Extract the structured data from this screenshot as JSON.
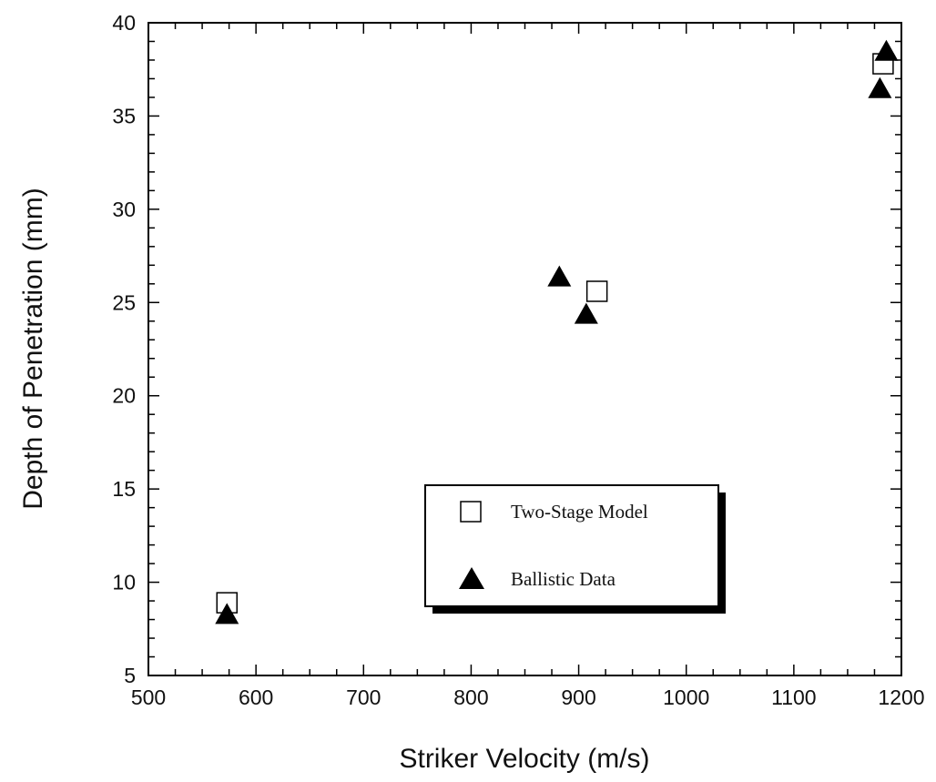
{
  "chart_data": {
    "type": "scatter",
    "title": "",
    "xlabel": "Striker Velocity (m/s)",
    "ylabel": "Depth of Penetration (mm)",
    "xlim": [
      500,
      1200
    ],
    "ylim": [
      5,
      40
    ],
    "x_ticks": [
      500,
      600,
      700,
      800,
      900,
      1000,
      1100,
      1200
    ],
    "y_ticks": [
      5,
      10,
      15,
      20,
      25,
      30,
      35,
      40
    ],
    "grid": false,
    "legend_position": "lower-right",
    "series": [
      {
        "name": "Two-Stage Model",
        "marker": "open-square",
        "color": "#000000",
        "points": [
          {
            "x": 573,
            "y": 8.9
          },
          {
            "x": 917,
            "y": 25.6
          },
          {
            "x": 1183,
            "y": 37.8
          }
        ]
      },
      {
        "name": "Ballistic Data",
        "marker": "filled-triangle",
        "color": "#000000",
        "points": [
          {
            "x": 573,
            "y": 8.3
          },
          {
            "x": 882,
            "y": 26.4
          },
          {
            "x": 907,
            "y": 24.4
          },
          {
            "x": 1180,
            "y": 36.5
          },
          {
            "x": 1186,
            "y": 38.5
          }
        ]
      }
    ]
  }
}
